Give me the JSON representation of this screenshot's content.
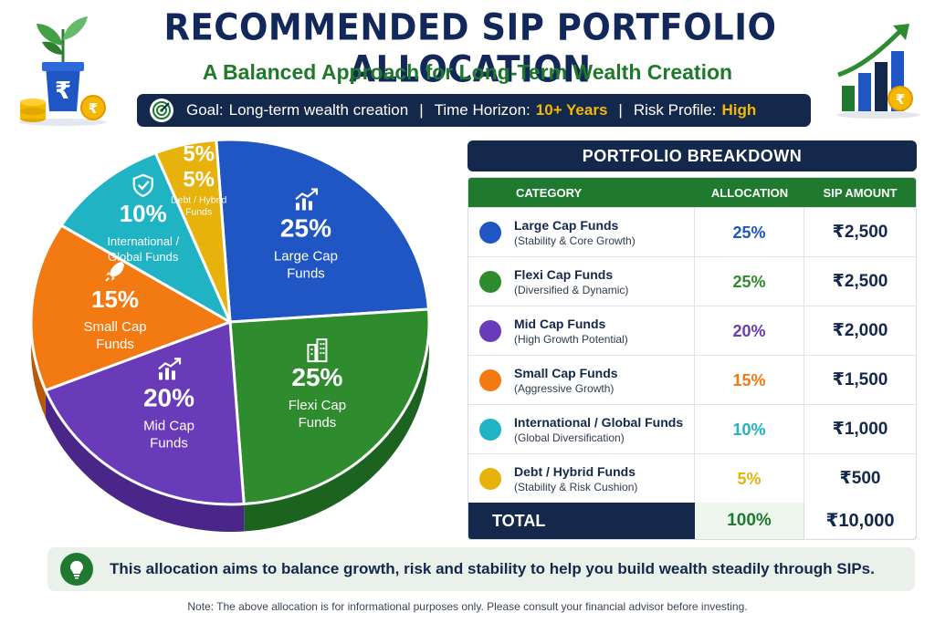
{
  "header": {
    "title": "RECOMMENDED SIP PORTFOLIO ALLOCATION",
    "subtitle": "A Balanced Approach for Long-Term Wealth Creation",
    "goal_label": "Goal:",
    "goal_value": "Long-term wealth creation",
    "horizon_label": "Time Horizon:",
    "horizon_value": "10+ Years",
    "risk_label": "Risk Profile:",
    "risk_value": "High",
    "separator": "|"
  },
  "decor": {
    "rupee_symbol": "₹"
  },
  "breakdown": {
    "title": "PORTFOLIO BREAKDOWN",
    "col_category": "CATEGORY",
    "col_allocation": "ALLOCATION",
    "col_amount": "SIP AMOUNT",
    "rows": [
      {
        "name": "Large Cap Funds",
        "desc": "(Stability & Core Growth)",
        "allocation": "25%",
        "amount": "₹2,500",
        "color": "#1f56c4"
      },
      {
        "name": "Flexi Cap Funds",
        "desc": "(Diversified & Dynamic)",
        "allocation": "25%",
        "amount": "₹2,500",
        "color": "#2e8b2e"
      },
      {
        "name": "Mid Cap Funds",
        "desc": "(High Growth Potential)",
        "allocation": "20%",
        "amount": "₹2,000",
        "color": "#6a3bb8"
      },
      {
        "name": "Small Cap Funds",
        "desc": "(Aggressive Growth)",
        "allocation": "15%",
        "amount": "₹1,500",
        "color": "#f37a13"
      },
      {
        "name": "International / Global Funds",
        "desc": "(Global Diversification)",
        "allocation": "10%",
        "amount": "₹1,000",
        "color": "#1fb3c4"
      },
      {
        "name": "Debt / Hybrid Funds",
        "desc": "(Stability & Risk Cushion)",
        "allocation": "5%",
        "amount": "₹500",
        "color": "#e8b20c"
      }
    ],
    "total_label": "TOTAL",
    "total_allocation": "100%",
    "total_amount": "₹10,000"
  },
  "chart_data": {
    "type": "pie",
    "slices": [
      {
        "label": "Large Cap Funds",
        "pct_label": "25%",
        "value": 25,
        "color": "#1f56c4",
        "side": "#143b8e",
        "icon": "chart-icon"
      },
      {
        "label": "Flexi Cap Funds",
        "pct_label": "25%",
        "value": 25,
        "color": "#2e8b2e",
        "side": "#1d6320",
        "icon": "building-icon"
      },
      {
        "label": "Mid Cap Funds",
        "pct_label": "20%",
        "value": 20,
        "color": "#6a3bb8",
        "side": "#4a2688",
        "icon": "chart-icon"
      },
      {
        "label": "Small Cap Funds",
        "pct_label": "15%",
        "value": 15,
        "color": "#f37a13",
        "side": "#b9580a",
        "icon": "rocket-icon"
      },
      {
        "label": "International / Global Funds",
        "pct_label": "10%",
        "value": 10,
        "color": "#1fb3c4",
        "side": "#13838f",
        "icon": "shield-icon"
      },
      {
        "label": "Debt / Hybrid Funds",
        "pct_label": "5%",
        "value": 5,
        "color": "#e8b20c",
        "side": "#b38808",
        "icon": "none",
        "extra_pct_label": "5%"
      }
    ],
    "label_lines": {
      "Large Cap Funds": [
        "Large Cap",
        "Funds"
      ],
      "Flexi Cap Funds": [
        "Flexi Cap",
        "Funds"
      ],
      "Mid Cap Funds": [
        "Mid Cap",
        "Funds"
      ],
      "Small Cap Funds": [
        "Small Cap",
        "Funds"
      ],
      "International / Global Funds": [
        "International /",
        "Global Funds"
      ],
      "Debt / Hybrid Funds": [
        "Debt / Hybrid",
        "Funds"
      ]
    }
  },
  "footer": {
    "info": "This allocation aims to balance growth, risk and stability to help you build wealth steadily through SIPs.",
    "note": "Note: The above allocation is for informational purposes only. Please consult your financial advisor before investing."
  }
}
